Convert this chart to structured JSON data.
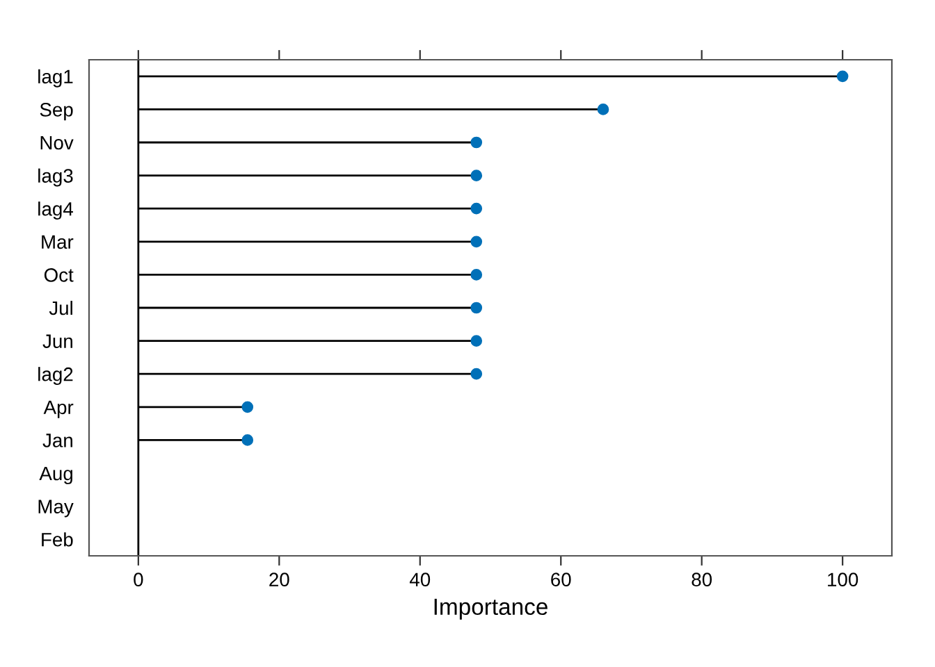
{
  "chart_data": {
    "type": "lollipop",
    "orientation": "horizontal",
    "xlabel": "Importance",
    "categories": [
      "lag1",
      "Sep",
      "Nov",
      "lag3",
      "lag4",
      "Mar",
      "Oct",
      "Jul",
      "Jun",
      "lag2",
      "Apr",
      "Jan",
      "Aug",
      "May",
      "Feb"
    ],
    "values": [
      100,
      66,
      48,
      48,
      48,
      48,
      48,
      48,
      48,
      48,
      15.5,
      15.5,
      null,
      null,
      null
    ],
    "color": "#0070b8",
    "marker": "circle",
    "xlim": [
      -7,
      107
    ],
    "xticks": [
      0,
      20,
      40,
      60,
      80,
      100
    ],
    "ref_lines": [
      {
        "axis": "x",
        "value": 0,
        "color": "#000000"
      }
    ],
    "legend": false
  }
}
